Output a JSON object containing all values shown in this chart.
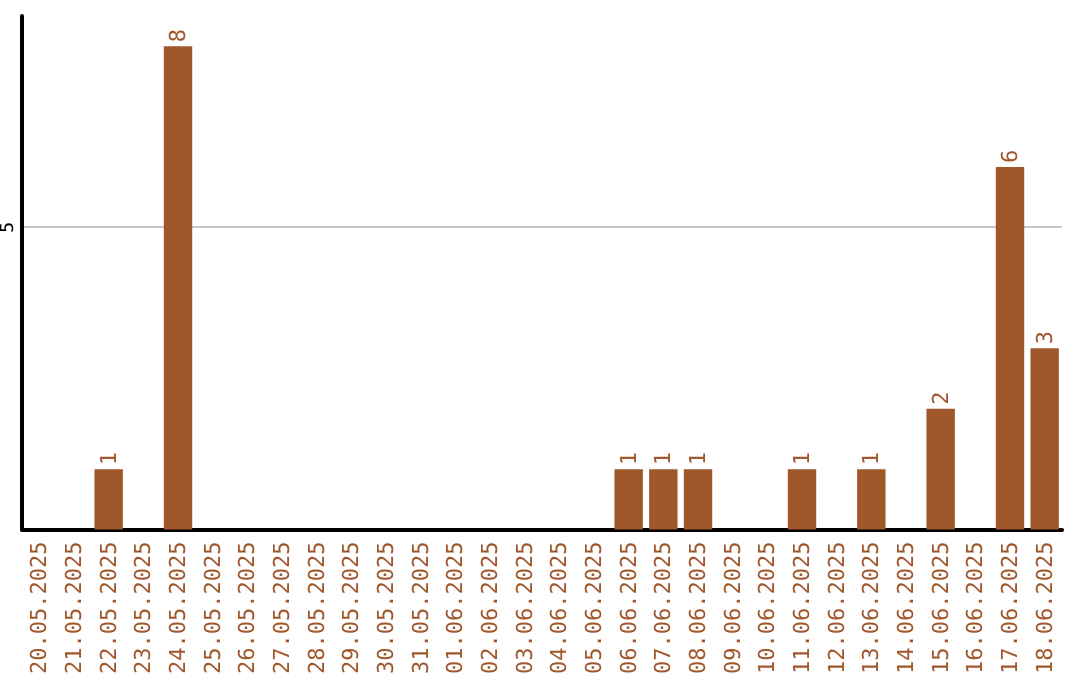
{
  "chart_data": {
    "type": "bar",
    "categories": [
      "20.05.2025",
      "21.05.2025",
      "22.05.2025",
      "23.05.2025",
      "24.05.2025",
      "25.05.2025",
      "26.05.2025",
      "27.05.2025",
      "28.05.2025",
      "29.05.2025",
      "30.05.2025",
      "31.05.2025",
      "01.06.2025",
      "02.06.2025",
      "03.06.2025",
      "04.06.2025",
      "05.06.2025",
      "06.06.2025",
      "07.06.2025",
      "08.06.2025",
      "09.06.2025",
      "10.06.2025",
      "11.06.2025",
      "12.06.2025",
      "13.06.2025",
      "14.06.2025",
      "15.06.2025",
      "16.06.2025",
      "17.06.2025",
      "18.06.2025"
    ],
    "values": [
      0,
      0,
      1,
      0,
      8,
      0,
      0,
      0,
      0,
      0,
      0,
      0,
      0,
      0,
      0,
      0,
      0,
      1,
      1,
      1,
      0,
      0,
      1,
      0,
      1,
      0,
      2,
      0,
      6,
      3
    ],
    "value_labels": [
      null,
      null,
      "1",
      null,
      "8",
      null,
      null,
      null,
      null,
      null,
      null,
      null,
      null,
      null,
      null,
      null,
      null,
      "1",
      "1",
      "1",
      null,
      null,
      "1",
      null,
      "1",
      null,
      "2",
      null,
      "6",
      "3"
    ],
    "color": "#a0572b",
    "ylim": [
      0,
      8.5
    ],
    "yticks": [
      5
    ],
    "grid": "y"
  }
}
